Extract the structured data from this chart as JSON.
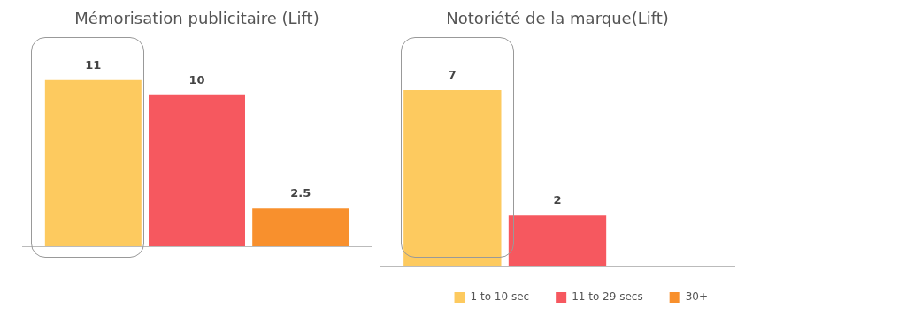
{
  "chart_data": [
    {
      "type": "bar",
      "title": "Mémorisation publicitaire (Lift)",
      "categories": [
        null
      ],
      "data_labels": true,
      "legend": false,
      "series": [
        {
          "color": "#fdca5f",
          "values": [
            11
          ]
        },
        {
          "color": "#f6585f",
          "values": [
            10
          ]
        },
        {
          "color": "#f8902d",
          "values": [
            2.5
          ]
        }
      ]
    },
    {
      "type": "bar",
      "title": "Notoriété de la marque(Lift)",
      "categories": [
        null
      ],
      "data_labels": true,
      "legend": "bottom right",
      "series": [
        {
          "name": "1 to 10 sec",
          "color": "#fdca5f",
          "values": [
            7
          ]
        },
        {
          "name": "11 to 29 secs",
          "color": "#f6585f",
          "values": [
            2
          ]
        },
        {
          "name": "30+",
          "color": "#f8902d",
          "values": [
            null
          ]
        }
      ]
    }
  ]
}
